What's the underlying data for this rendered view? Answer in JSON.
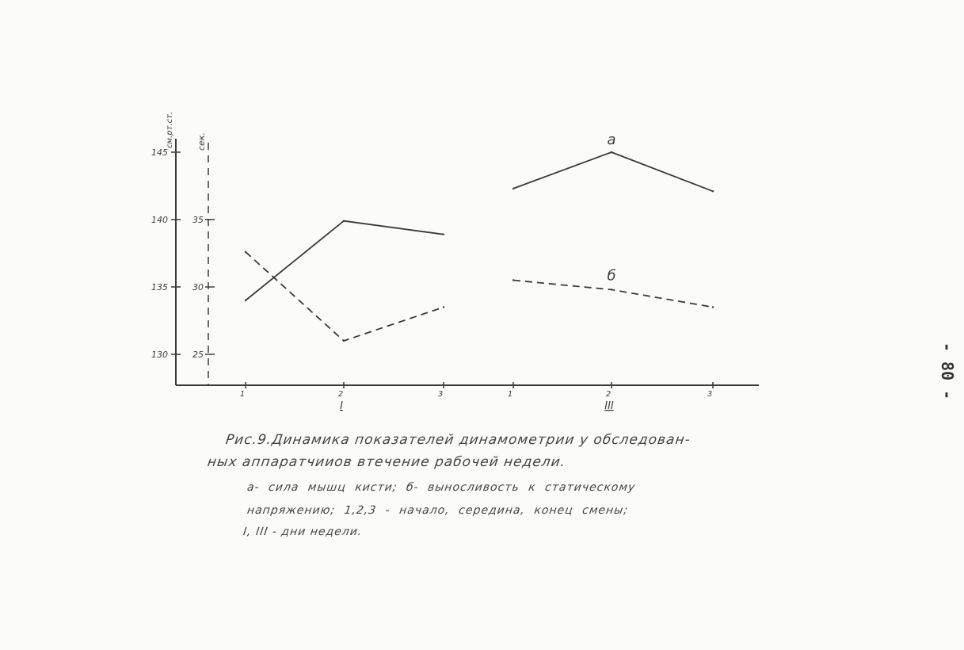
{
  "page_number": "- 80 -",
  "caption": {
    "line1": "Рис.9.Динамика показателей динамометрии у обследован-",
    "line2": "ных аппаратчииов втечение рабочей недели.",
    "line3": "а- сила мышц кисти;   б- выносливость к статическому",
    "line4": "напряжению;      1,2,3 - начало, середина, конец смены;",
    "line5": "I, III - дни недели."
  },
  "colors": {
    "ink": "#3a3a3a",
    "paper": "#fbfbfa"
  },
  "chart_data": {
    "type": "line",
    "left_axis": {
      "unit": "см.рт.ст.",
      "ticks": [
        "145",
        "140",
        "135",
        "130"
      ],
      "ylim": [
        130,
        145
      ]
    },
    "right_axis": {
      "unit": "сек.",
      "ticks": [
        "35",
        "30",
        "25"
      ],
      "ylim": [
        25,
        35
      ]
    },
    "x_tick_labels": [
      "1",
      "2",
      "3",
      "1",
      "2",
      "3"
    ],
    "group_labels": [
      "I",
      "III"
    ],
    "grid": false,
    "series": [
      {
        "name": "а",
        "axis": "left",
        "line_style": "solid",
        "segments": [
          {
            "group": "I",
            "x": [
              1,
              2,
              3
            ],
            "y": [
              134,
              139.9,
              138.9
            ]
          },
          {
            "group": "III",
            "x": [
              1,
              2,
              3
            ],
            "y": [
              142.3,
              145,
              142.1
            ]
          }
        ]
      },
      {
        "name": "б",
        "axis": "right",
        "line_style": "dashed",
        "segments": [
          {
            "group": "I",
            "x": [
              1,
              2,
              3
            ],
            "y": [
              32.6,
              26,
              28.5
            ]
          },
          {
            "group": "III",
            "x": [
              1,
              2,
              3
            ],
            "y": [
              30.5,
              29.8,
              28.5
            ]
          }
        ]
      }
    ]
  }
}
